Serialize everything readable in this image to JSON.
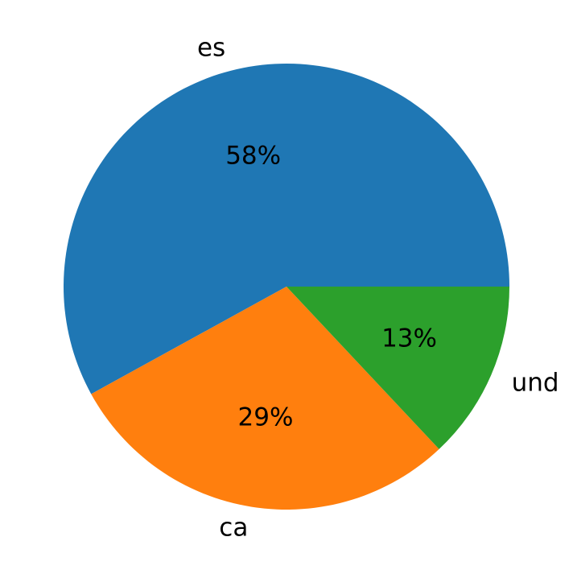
{
  "chart_data": {
    "type": "pie",
    "categories": [
      "es",
      "ca",
      "und"
    ],
    "values": [
      58,
      29,
      13
    ],
    "value_labels": [
      "58%",
      "29%",
      "13%"
    ],
    "colors": [
      "#1f77b4",
      "#ff7f0e",
      "#2ca02c"
    ],
    "start_angle": 0,
    "counterclock": true
  }
}
